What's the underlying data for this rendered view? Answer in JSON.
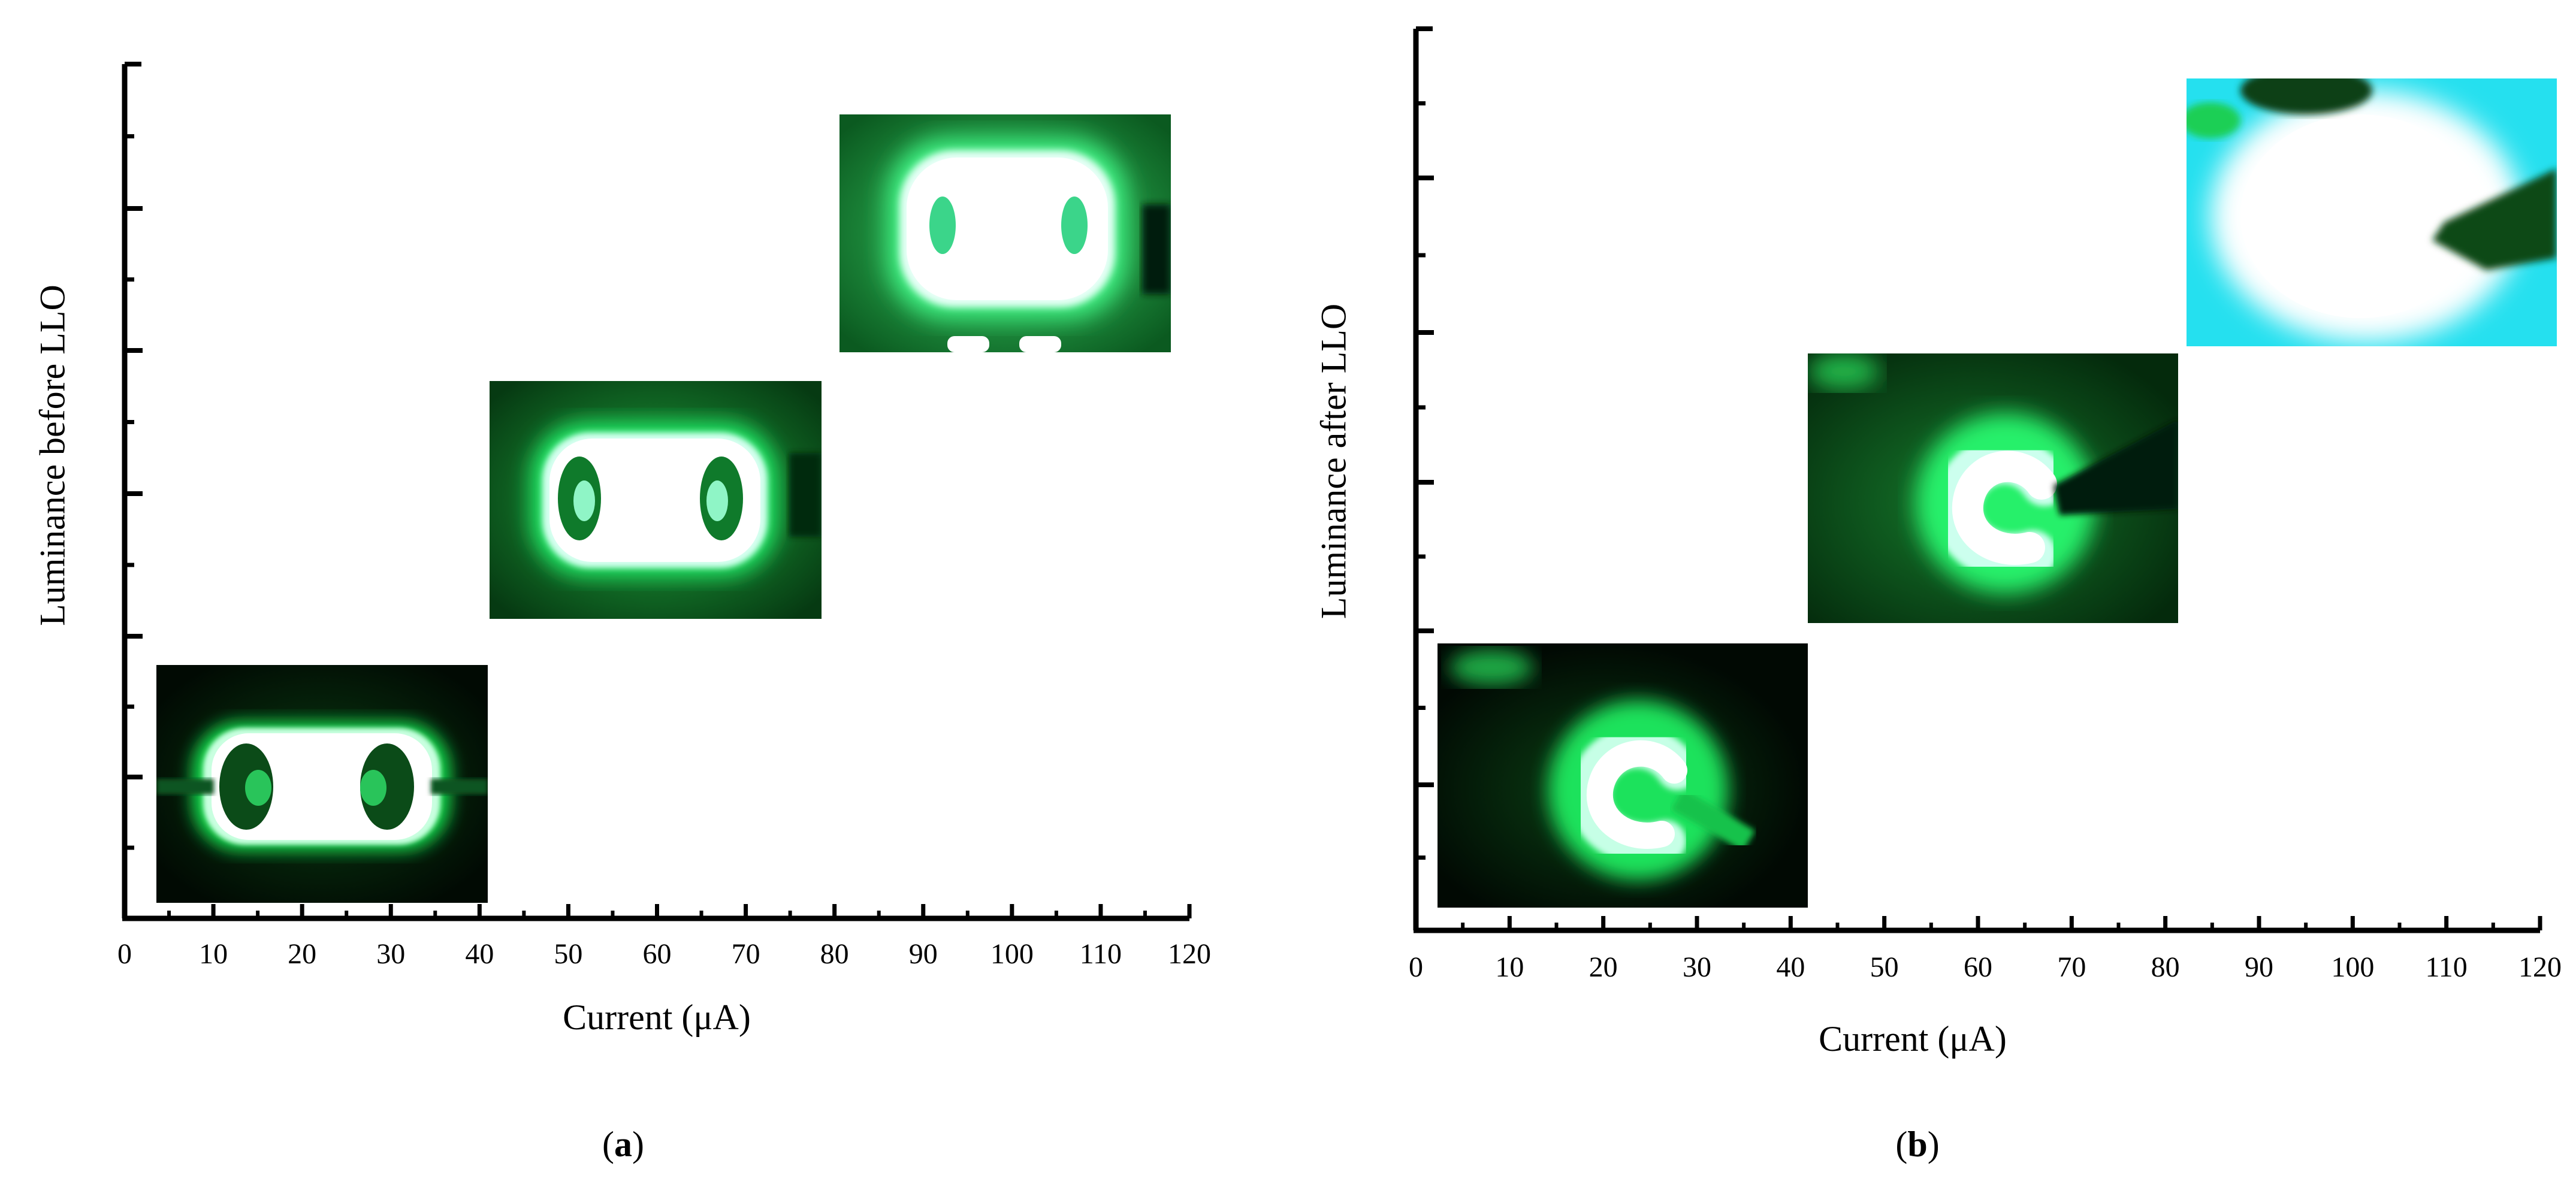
{
  "panels": [
    {
      "id": "a",
      "caption_letter": "a",
      "xlabel": "Current (μA)",
      "ylabel": "Luminance before LLO",
      "xticks": [
        0,
        10,
        20,
        30,
        40,
        50,
        60,
        70,
        80,
        90,
        100,
        110,
        120
      ],
      "xlim": [
        0,
        120
      ],
      "inset_style": "before"
    },
    {
      "id": "b",
      "caption_letter": "b",
      "xlabel": "Current (μA)",
      "ylabel": "Luminance after LLO",
      "xticks": [
        0,
        10,
        20,
        30,
        40,
        50,
        60,
        70,
        80,
        90,
        100,
        110,
        120
      ],
      "xlim": [
        0,
        120
      ],
      "inset_style": "after"
    }
  ],
  "chart_data": [
    {
      "type": "scatter",
      "panel": "a",
      "xlabel": "Current (μA)",
      "ylabel": "Luminance before LLO",
      "xlim": [
        0,
        120
      ],
      "x": [
        0,
        10,
        20,
        30,
        40,
        50,
        60,
        70,
        80,
        90,
        100,
        110,
        120
      ],
      "y_tick_labels": [],
      "marks": [
        {
          "kind": "emission-image",
          "x_range": [
            4,
            41
          ],
          "level": "low"
        },
        {
          "kind": "emission-image",
          "x_range": [
            41,
            79
          ],
          "level": "medium"
        },
        {
          "kind": "emission-image",
          "x_range": [
            80,
            118
          ],
          "level": "high"
        }
      ]
    },
    {
      "type": "scatter",
      "panel": "b",
      "xlabel": "Current (μA)",
      "ylabel": "Luminance after LLO",
      "xlim": [
        0,
        120
      ],
      "x": [
        0,
        10,
        20,
        30,
        40,
        50,
        60,
        70,
        80,
        90,
        100,
        110,
        120
      ],
      "y_tick_labels": [],
      "marks": [
        {
          "kind": "emission-image",
          "x_range": [
            3,
            42
          ],
          "level": "low"
        },
        {
          "kind": "emission-image",
          "x_range": [
            42,
            82
          ],
          "level": "medium"
        },
        {
          "kind": "emission-image",
          "x_range": [
            82,
            121
          ],
          "level": "high"
        }
      ]
    }
  ],
  "colors": {
    "axis": "#000000",
    "glow_green": "#19e05a",
    "glow_core": "#ffffff",
    "dark_bg": "#041a08",
    "cyan": "#22e2f0"
  }
}
